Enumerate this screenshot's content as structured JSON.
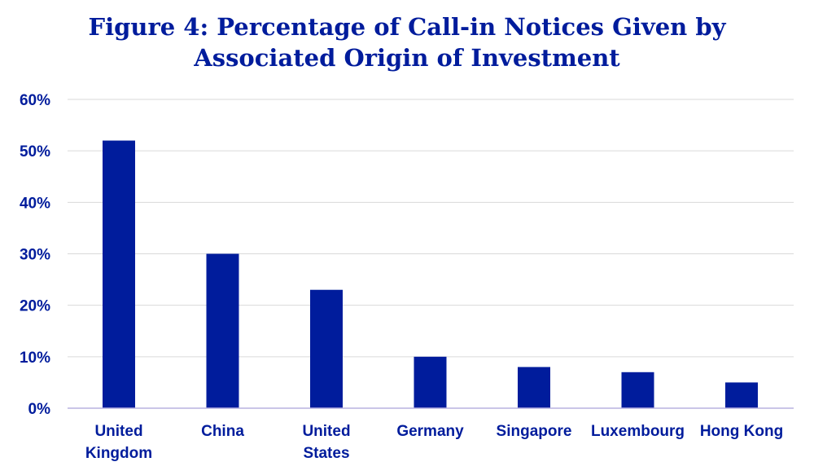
{
  "chart_data": {
    "type": "bar",
    "title_lines": [
      "Figure 4: Percentage of Call-in Notices Given by",
      "Associated Origin of Investment"
    ],
    "categories": [
      [
        "United",
        "Kingdom"
      ],
      [
        "China"
      ],
      [
        "United",
        "States"
      ],
      [
        "Germany"
      ],
      [
        "Singapore"
      ],
      [
        "Luxembourg"
      ],
      [
        "Hong Kong"
      ]
    ],
    "values": [
      52,
      30,
      23,
      10,
      8,
      7,
      5
    ],
    "yticks": [
      "0%",
      "10%",
      "20%",
      "30%",
      "40%",
      "50%",
      "60%"
    ],
    "ylim": [
      0,
      60
    ],
    "grid": true,
    "colors": {
      "bar": "#001c9c",
      "text": "#001c9c",
      "grid": "#d9d9d9",
      "baseline": "#b9b2e0"
    }
  }
}
